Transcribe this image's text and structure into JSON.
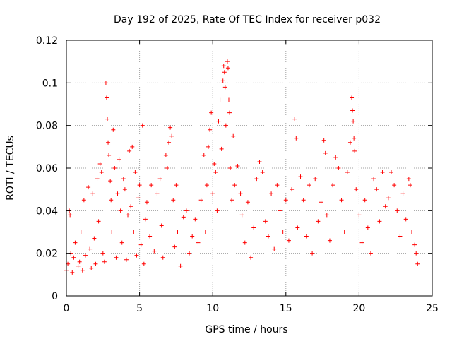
{
  "chart_data": {
    "type": "scatter",
    "title": "Day 192 of 2025, Rate Of TEC Index for receiver p032",
    "xlabel": "GPS time / hours",
    "ylabel": "ROTI / TECUs",
    "xlim": [
      0,
      25
    ],
    "ylim": [
      0,
      0.12
    ],
    "xticks": [
      0,
      5,
      10,
      15,
      20,
      25
    ],
    "xtick_labels": [
      "0",
      "5",
      "10",
      "15",
      "20",
      "25"
    ],
    "yticks": [
      0,
      0.02,
      0.04,
      0.06,
      0.08,
      0.1,
      0.12
    ],
    "ytick_labels": [
      "0",
      "0.02",
      "0.04",
      "0.06",
      "0.08",
      "0.1",
      "0.12"
    ],
    "grid": true,
    "marker": "plus",
    "color": "#ff0000",
    "series": [
      {
        "points": [
          [
            0.0,
            0.012
          ],
          [
            0.1,
            0.015
          ],
          [
            0.2,
            0.04
          ],
          [
            0.25,
            0.038
          ],
          [
            0.3,
            0.02
          ],
          [
            0.4,
            0.011
          ],
          [
            0.5,
            0.018
          ],
          [
            0.6,
            0.025
          ],
          [
            0.8,
            0.014
          ],
          [
            0.9,
            0.016
          ],
          [
            1.0,
            0.03
          ],
          [
            1.1,
            0.012
          ],
          [
            1.2,
            0.045
          ],
          [
            1.3,
            0.019
          ],
          [
            1.5,
            0.051
          ],
          [
            1.6,
            0.022
          ],
          [
            1.7,
            0.013
          ],
          [
            1.8,
            0.048
          ],
          [
            1.9,
            0.027
          ],
          [
            2.0,
            0.015
          ],
          [
            2.1,
            0.055
          ],
          [
            2.2,
            0.035
          ],
          [
            2.3,
            0.062
          ],
          [
            2.4,
            0.058
          ],
          [
            2.5,
            0.02
          ],
          [
            2.6,
            0.016
          ],
          [
            2.7,
            0.1
          ],
          [
            2.75,
            0.093
          ],
          [
            2.8,
            0.083
          ],
          [
            2.85,
            0.072
          ],
          [
            2.9,
            0.066
          ],
          [
            3.0,
            0.054
          ],
          [
            3.05,
            0.045
          ],
          [
            3.1,
            0.03
          ],
          [
            3.2,
            0.078
          ],
          [
            3.3,
            0.06
          ],
          [
            3.4,
            0.018
          ],
          [
            3.5,
            0.048
          ],
          [
            3.6,
            0.064
          ],
          [
            3.7,
            0.04
          ],
          [
            3.8,
            0.025
          ],
          [
            3.9,
            0.055
          ],
          [
            4.0,
            0.05
          ],
          [
            4.1,
            0.017
          ],
          [
            4.2,
            0.038
          ],
          [
            4.3,
            0.068
          ],
          [
            4.4,
            0.042
          ],
          [
            4.5,
            0.07
          ],
          [
            4.6,
            0.03
          ],
          [
            4.7,
            0.058
          ],
          [
            4.8,
            0.019
          ],
          [
            4.9,
            0.046
          ],
          [
            5.0,
            0.052
          ],
          [
            5.1,
            0.024
          ],
          [
            5.2,
            0.08
          ],
          [
            5.3,
            0.015
          ],
          [
            5.4,
            0.036
          ],
          [
            5.5,
            0.044
          ],
          [
            5.7,
            0.028
          ],
          [
            5.8,
            0.052
          ],
          [
            6.0,
            0.021
          ],
          [
            6.2,
            0.048
          ],
          [
            6.4,
            0.055
          ],
          [
            6.5,
            0.033
          ],
          [
            6.6,
            0.018
          ],
          [
            6.8,
            0.066
          ],
          [
            6.9,
            0.06
          ],
          [
            7.0,
            0.072
          ],
          [
            7.1,
            0.079
          ],
          [
            7.2,
            0.075
          ],
          [
            7.3,
            0.045
          ],
          [
            7.4,
            0.023
          ],
          [
            7.5,
            0.052
          ],
          [
            7.6,
            0.03
          ],
          [
            7.8,
            0.014
          ],
          [
            8.0,
            0.037
          ],
          [
            8.2,
            0.04
          ],
          [
            8.4,
            0.02
          ],
          [
            8.6,
            0.028
          ],
          [
            8.8,
            0.036
          ],
          [
            9.0,
            0.025
          ],
          [
            9.2,
            0.045
          ],
          [
            9.4,
            0.066
          ],
          [
            9.5,
            0.03
          ],
          [
            9.6,
            0.052
          ],
          [
            9.7,
            0.07
          ],
          [
            9.8,
            0.078
          ],
          [
            9.9,
            0.086
          ],
          [
            10.0,
            0.048
          ],
          [
            10.1,
            0.062
          ],
          [
            10.2,
            0.058
          ],
          [
            10.3,
            0.04
          ],
          [
            10.4,
            0.082
          ],
          [
            10.5,
            0.092
          ],
          [
            10.6,
            0.069
          ],
          [
            10.7,
            0.101
          ],
          [
            10.75,
            0.108
          ],
          [
            10.8,
            0.105
          ],
          [
            10.85,
            0.098
          ],
          [
            10.9,
            0.08
          ],
          [
            11.0,
            0.11
          ],
          [
            11.05,
            0.107
          ],
          [
            11.1,
            0.092
          ],
          [
            11.15,
            0.086
          ],
          [
            11.2,
            0.06
          ],
          [
            11.3,
            0.045
          ],
          [
            11.4,
            0.075
          ],
          [
            11.5,
            0.052
          ],
          [
            11.7,
            0.061
          ],
          [
            11.9,
            0.048
          ],
          [
            12.0,
            0.038
          ],
          [
            12.2,
            0.025
          ],
          [
            12.4,
            0.044
          ],
          [
            12.6,
            0.018
          ],
          [
            12.8,
            0.032
          ],
          [
            13.0,
            0.055
          ],
          [
            13.2,
            0.063
          ],
          [
            13.4,
            0.058
          ],
          [
            13.6,
            0.035
          ],
          [
            13.8,
            0.028
          ],
          [
            14.0,
            0.048
          ],
          [
            14.2,
            0.022
          ],
          [
            14.4,
            0.052
          ],
          [
            14.6,
            0.04
          ],
          [
            14.8,
            0.03
          ],
          [
            15.0,
            0.045
          ],
          [
            15.2,
            0.026
          ],
          [
            15.4,
            0.05
          ],
          [
            15.6,
            0.083
          ],
          [
            15.7,
            0.074
          ],
          [
            15.8,
            0.032
          ],
          [
            16.0,
            0.056
          ],
          [
            16.2,
            0.045
          ],
          [
            16.4,
            0.028
          ],
          [
            16.6,
            0.052
          ],
          [
            16.8,
            0.02
          ],
          [
            17.0,
            0.055
          ],
          [
            17.2,
            0.035
          ],
          [
            17.4,
            0.044
          ],
          [
            17.6,
            0.073
          ],
          [
            17.7,
            0.067
          ],
          [
            17.8,
            0.038
          ],
          [
            18.0,
            0.026
          ],
          [
            18.2,
            0.052
          ],
          [
            18.4,
            0.065
          ],
          [
            18.6,
            0.06
          ],
          [
            18.8,
            0.045
          ],
          [
            19.0,
            0.03
          ],
          [
            19.2,
            0.058
          ],
          [
            19.4,
            0.072
          ],
          [
            19.5,
            0.093
          ],
          [
            19.55,
            0.087
          ],
          [
            19.6,
            0.082
          ],
          [
            19.65,
            0.074
          ],
          [
            19.7,
            0.068
          ],
          [
            19.8,
            0.05
          ],
          [
            20.0,
            0.038
          ],
          [
            20.2,
            0.025
          ],
          [
            20.4,
            0.045
          ],
          [
            20.6,
            0.032
          ],
          [
            20.8,
            0.02
          ],
          [
            21.0,
            0.055
          ],
          [
            21.2,
            0.05
          ],
          [
            21.4,
            0.035
          ],
          [
            21.6,
            0.058
          ],
          [
            21.8,
            0.042
          ],
          [
            22.0,
            0.046
          ],
          [
            22.2,
            0.058
          ],
          [
            22.4,
            0.052
          ],
          [
            22.6,
            0.04
          ],
          [
            22.8,
            0.028
          ],
          [
            23.0,
            0.048
          ],
          [
            23.2,
            0.036
          ],
          [
            23.4,
            0.055
          ],
          [
            23.5,
            0.052
          ],
          [
            23.6,
            0.03
          ],
          [
            23.8,
            0.024
          ],
          [
            23.9,
            0.02
          ],
          [
            24.0,
            0.015
          ]
        ]
      }
    ]
  }
}
